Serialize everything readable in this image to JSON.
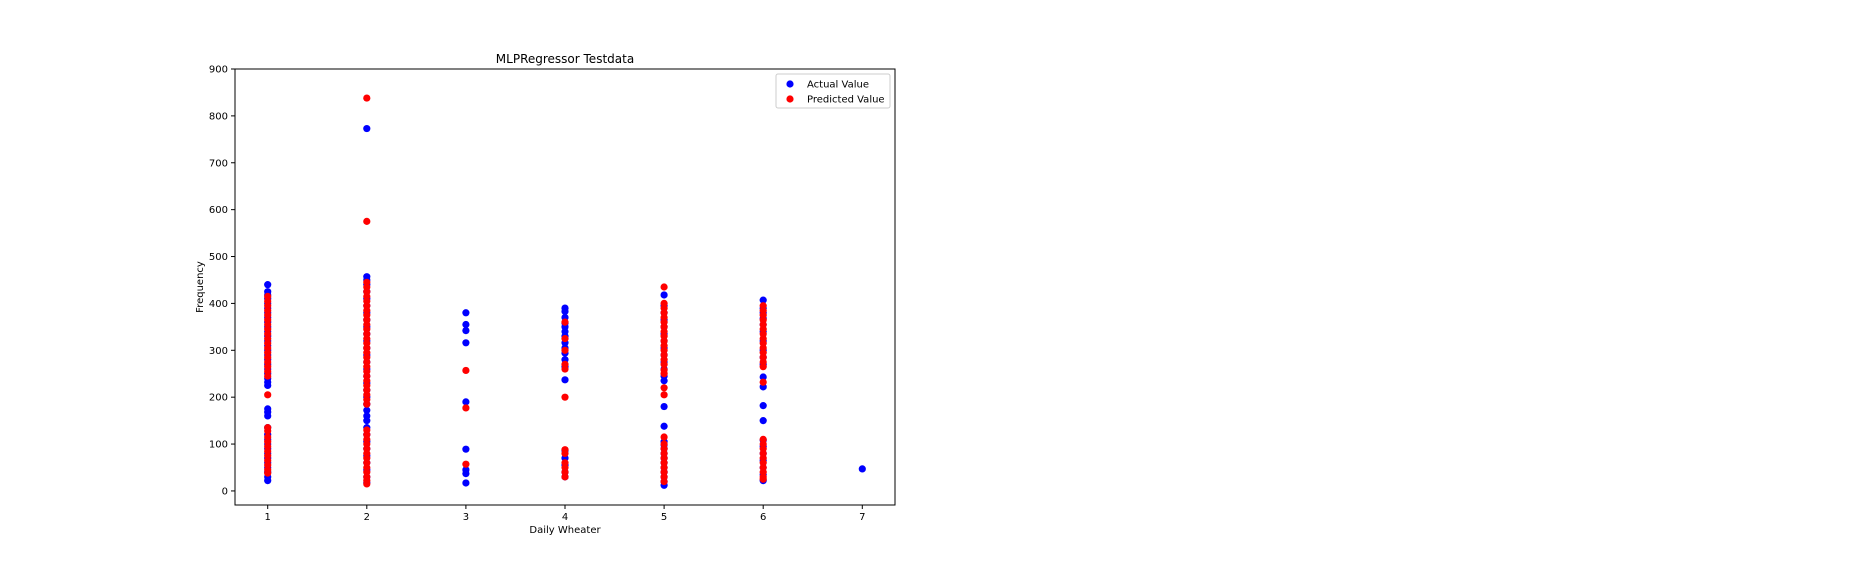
{
  "chart_data": {
    "type": "scatter",
    "title": "MLPRegressor Testdata",
    "xlabel": "Daily Wheater",
    "ylabel": "Frequency",
    "xlim": [
      0.67,
      7.33
    ],
    "ylim": [
      -30,
      900
    ],
    "xticks": [
      1,
      2,
      3,
      4,
      5,
      6,
      7
    ],
    "yticks": [
      0,
      100,
      200,
      300,
      400,
      500,
      600,
      700,
      800,
      900
    ],
    "grid": false,
    "legend_position": "top-right",
    "series": [
      {
        "name": "Actual Value",
        "color": "#0000ff",
        "points": [
          [
            1,
            440
          ],
          [
            1,
            425
          ],
          [
            1,
            418
          ],
          [
            1,
            410
          ],
          [
            1,
            400
          ],
          [
            1,
            390
          ],
          [
            1,
            380
          ],
          [
            1,
            370
          ],
          [
            1,
            360
          ],
          [
            1,
            350
          ],
          [
            1,
            340
          ],
          [
            1,
            330
          ],
          [
            1,
            320
          ],
          [
            1,
            310
          ],
          [
            1,
            300
          ],
          [
            1,
            290
          ],
          [
            1,
            280
          ],
          [
            1,
            270
          ],
          [
            1,
            260
          ],
          [
            1,
            250
          ],
          [
            1,
            240
          ],
          [
            1,
            232
          ],
          [
            1,
            225
          ],
          [
            1,
            175
          ],
          [
            1,
            168
          ],
          [
            1,
            160
          ],
          [
            1,
            135
          ],
          [
            1,
            120
          ],
          [
            1,
            110
          ],
          [
            1,
            100
          ],
          [
            1,
            90
          ],
          [
            1,
            80
          ],
          [
            1,
            70
          ],
          [
            1,
            60
          ],
          [
            1,
            50
          ],
          [
            1,
            40
          ],
          [
            1,
            30
          ],
          [
            1,
            22
          ],
          [
            2,
            773
          ],
          [
            2,
            457
          ],
          [
            2,
            450
          ],
          [
            2,
            440
          ],
          [
            2,
            425
          ],
          [
            2,
            410
          ],
          [
            2,
            395
          ],
          [
            2,
            380
          ],
          [
            2,
            365
          ],
          [
            2,
            350
          ],
          [
            2,
            335
          ],
          [
            2,
            320
          ],
          [
            2,
            305
          ],
          [
            2,
            290
          ],
          [
            2,
            275
          ],
          [
            2,
            260
          ],
          [
            2,
            245
          ],
          [
            2,
            230
          ],
          [
            2,
            215
          ],
          [
            2,
            200
          ],
          [
            2,
            185
          ],
          [
            2,
            172
          ],
          [
            2,
            160
          ],
          [
            2,
            150
          ],
          [
            2,
            135
          ],
          [
            2,
            120
          ],
          [
            2,
            105
          ],
          [
            2,
            90
          ],
          [
            2,
            75
          ],
          [
            2,
            60
          ],
          [
            2,
            45
          ],
          [
            2,
            30
          ],
          [
            2,
            18
          ],
          [
            3,
            380
          ],
          [
            3,
            355
          ],
          [
            3,
            342
          ],
          [
            3,
            316
          ],
          [
            3,
            190
          ],
          [
            3,
            89
          ],
          [
            3,
            45
          ],
          [
            3,
            37
          ],
          [
            3,
            17
          ],
          [
            4,
            390
          ],
          [
            4,
            383
          ],
          [
            4,
            370
          ],
          [
            4,
            358
          ],
          [
            4,
            350
          ],
          [
            4,
            340
          ],
          [
            4,
            330
          ],
          [
            4,
            316
          ],
          [
            4,
            305
          ],
          [
            4,
            294
          ],
          [
            4,
            280
          ],
          [
            4,
            265
          ],
          [
            4,
            237
          ],
          [
            4,
            86
          ],
          [
            4,
            70
          ],
          [
            4,
            55
          ],
          [
            4,
            40
          ],
          [
            4,
            30
          ],
          [
            5,
            418
          ],
          [
            5,
            395
          ],
          [
            5,
            380
          ],
          [
            5,
            365
          ],
          [
            5,
            350
          ],
          [
            5,
            335
          ],
          [
            5,
            320
          ],
          [
            5,
            305
          ],
          [
            5,
            290
          ],
          [
            5,
            275
          ],
          [
            5,
            260
          ],
          [
            5,
            245
          ],
          [
            5,
            235
          ],
          [
            5,
            180
          ],
          [
            5,
            138
          ],
          [
            5,
            105
          ],
          [
            5,
            98
          ],
          [
            5,
            90
          ],
          [
            5,
            80
          ],
          [
            5,
            70
          ],
          [
            5,
            60
          ],
          [
            5,
            50
          ],
          [
            5,
            40
          ],
          [
            5,
            30
          ],
          [
            5,
            20
          ],
          [
            5,
            12
          ],
          [
            6,
            407
          ],
          [
            6,
            390
          ],
          [
            6,
            380
          ],
          [
            6,
            368
          ],
          [
            6,
            355
          ],
          [
            6,
            340
          ],
          [
            6,
            320
          ],
          [
            6,
            300
          ],
          [
            6,
            285
          ],
          [
            6,
            270
          ],
          [
            6,
            243
          ],
          [
            6,
            222
          ],
          [
            6,
            182
          ],
          [
            6,
            150
          ],
          [
            6,
            108
          ],
          [
            6,
            95
          ],
          [
            6,
            80
          ],
          [
            6,
            65
          ],
          [
            6,
            50
          ],
          [
            6,
            35
          ],
          [
            6,
            22
          ],
          [
            7,
            47
          ]
        ]
      },
      {
        "name": "Predicted Value",
        "color": "#ff0000",
        "points": [
          [
            1,
            415
          ],
          [
            1,
            405
          ],
          [
            1,
            395
          ],
          [
            1,
            385
          ],
          [
            1,
            375
          ],
          [
            1,
            365
          ],
          [
            1,
            355
          ],
          [
            1,
            345
          ],
          [
            1,
            335
          ],
          [
            1,
            325
          ],
          [
            1,
            315
          ],
          [
            1,
            305
          ],
          [
            1,
            295
          ],
          [
            1,
            285
          ],
          [
            1,
            275
          ],
          [
            1,
            265
          ],
          [
            1,
            255
          ],
          [
            1,
            245
          ],
          [
            1,
            205
          ],
          [
            1,
            135
          ],
          [
            1,
            128
          ],
          [
            1,
            115
          ],
          [
            1,
            105
          ],
          [
            1,
            95
          ],
          [
            1,
            85
          ],
          [
            1,
            75
          ],
          [
            1,
            65
          ],
          [
            1,
            55
          ],
          [
            1,
            45
          ],
          [
            1,
            38
          ],
          [
            2,
            838
          ],
          [
            2,
            575
          ],
          [
            2,
            445
          ],
          [
            2,
            435
          ],
          [
            2,
            425
          ],
          [
            2,
            415
          ],
          [
            2,
            405
          ],
          [
            2,
            395
          ],
          [
            2,
            385
          ],
          [
            2,
            375
          ],
          [
            2,
            365
          ],
          [
            2,
            355
          ],
          [
            2,
            345
          ],
          [
            2,
            335
          ],
          [
            2,
            325
          ],
          [
            2,
            315
          ],
          [
            2,
            305
          ],
          [
            2,
            295
          ],
          [
            2,
            285
          ],
          [
            2,
            275
          ],
          [
            2,
            265
          ],
          [
            2,
            255
          ],
          [
            2,
            245
          ],
          [
            2,
            235
          ],
          [
            2,
            225
          ],
          [
            2,
            215
          ],
          [
            2,
            205
          ],
          [
            2,
            195
          ],
          [
            2,
            185
          ],
          [
            2,
            130
          ],
          [
            2,
            120
          ],
          [
            2,
            110
          ],
          [
            2,
            100
          ],
          [
            2,
            90
          ],
          [
            2,
            80
          ],
          [
            2,
            70
          ],
          [
            2,
            60
          ],
          [
            2,
            50
          ],
          [
            2,
            40
          ],
          [
            2,
            30
          ],
          [
            2,
            22
          ],
          [
            2,
            15
          ],
          [
            3,
            257
          ],
          [
            3,
            177
          ],
          [
            3,
            57
          ],
          [
            4,
            360
          ],
          [
            4,
            325
          ],
          [
            4,
            300
          ],
          [
            4,
            270
          ],
          [
            4,
            260
          ],
          [
            4,
            200
          ],
          [
            4,
            88
          ],
          [
            4,
            80
          ],
          [
            4,
            60
          ],
          [
            4,
            50
          ],
          [
            4,
            40
          ],
          [
            4,
            30
          ],
          [
            5,
            435
          ],
          [
            5,
            400
          ],
          [
            5,
            390
          ],
          [
            5,
            380
          ],
          [
            5,
            370
          ],
          [
            5,
            360
          ],
          [
            5,
            350
          ],
          [
            5,
            340
          ],
          [
            5,
            330
          ],
          [
            5,
            320
          ],
          [
            5,
            310
          ],
          [
            5,
            300
          ],
          [
            5,
            290
          ],
          [
            5,
            280
          ],
          [
            5,
            270
          ],
          [
            5,
            258
          ],
          [
            5,
            250
          ],
          [
            5,
            220
          ],
          [
            5,
            205
          ],
          [
            5,
            115
          ],
          [
            5,
            100
          ],
          [
            5,
            90
          ],
          [
            5,
            80
          ],
          [
            5,
            70
          ],
          [
            5,
            60
          ],
          [
            5,
            50
          ],
          [
            5,
            40
          ],
          [
            5,
            30
          ],
          [
            5,
            20
          ],
          [
            6,
            395
          ],
          [
            6,
            385
          ],
          [
            6,
            375
          ],
          [
            6,
            365
          ],
          [
            6,
            355
          ],
          [
            6,
            345
          ],
          [
            6,
            335
          ],
          [
            6,
            325
          ],
          [
            6,
            315
          ],
          [
            6,
            305
          ],
          [
            6,
            295
          ],
          [
            6,
            285
          ],
          [
            6,
            275
          ],
          [
            6,
            265
          ],
          [
            6,
            232
          ],
          [
            6,
            110
          ],
          [
            6,
            100
          ],
          [
            6,
            90
          ],
          [
            6,
            80
          ],
          [
            6,
            70
          ],
          [
            6,
            60
          ],
          [
            6,
            50
          ],
          [
            6,
            40
          ],
          [
            6,
            30
          ],
          [
            6,
            25
          ]
        ]
      }
    ]
  }
}
